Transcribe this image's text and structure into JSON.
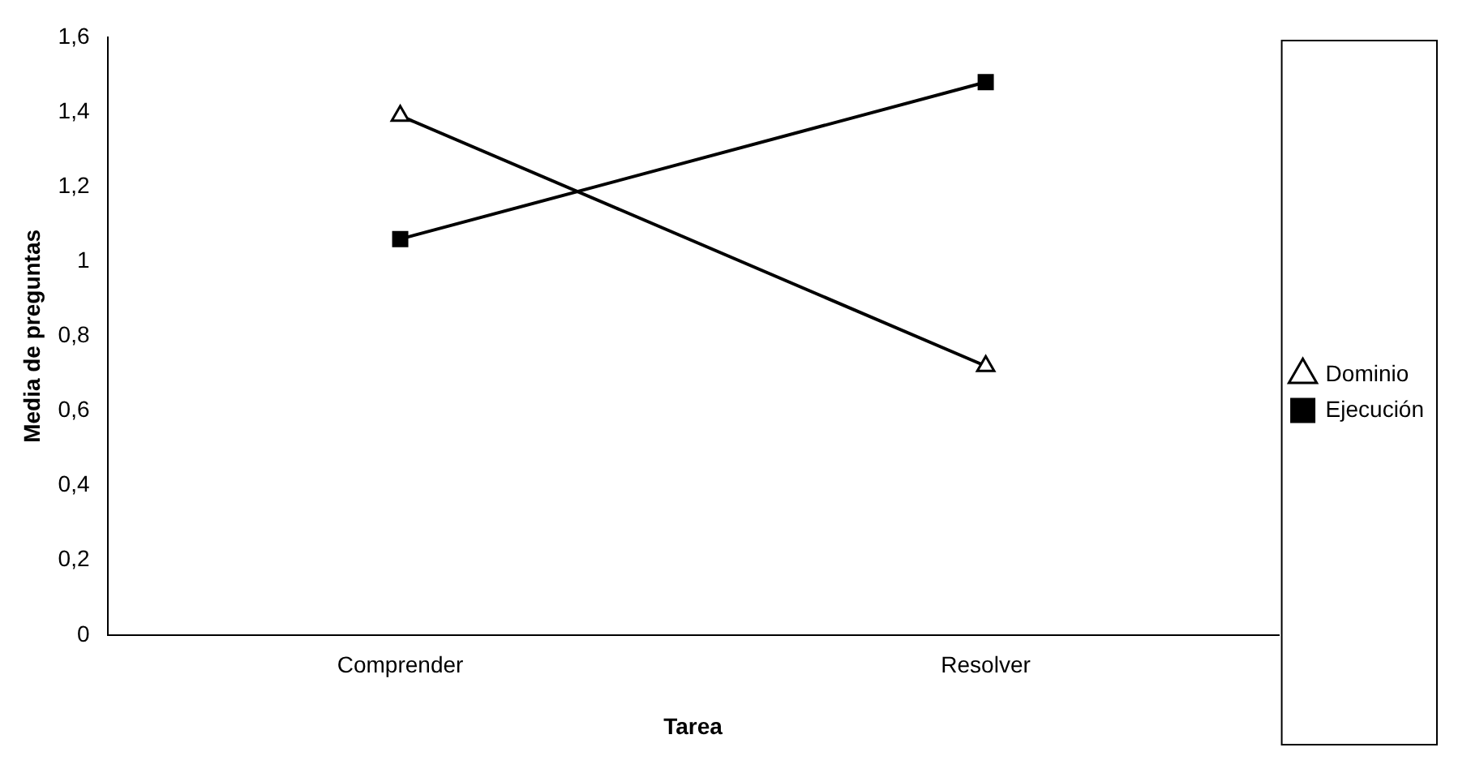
{
  "chart_data": {
    "type": "line",
    "xlabel": "Tarea",
    "ylabel": "Media de preguntas",
    "categories": [
      "Comprender",
      "Resolver"
    ],
    "series": [
      {
        "name": "Dominio",
        "color": "#000000",
        "marker": "triangle",
        "values": [
          1.39,
          0.72
        ]
      },
      {
        "name": "Ejecución",
        "color": "#000000",
        "marker": "square",
        "values": [
          1.06,
          1.48
        ]
      }
    ],
    "ylim": [
      0,
      1.6
    ],
    "yticks": [
      0,
      {
        "value": 0.2,
        "label": "0,2"
      },
      {
        "value": 0.4,
        "label": "0,4"
      },
      {
        "value": 0.6,
        "label": "0,6"
      },
      {
        "value": 0.8,
        "label": "0,8"
      },
      1,
      {
        "value": 1.2,
        "label": "1,2"
      },
      {
        "value": 1.4,
        "label": "1,4"
      },
      {
        "value": 1.6,
        "label": "1,6"
      }
    ],
    "grid": false,
    "legend": "right",
    "line_style": "solid"
  }
}
